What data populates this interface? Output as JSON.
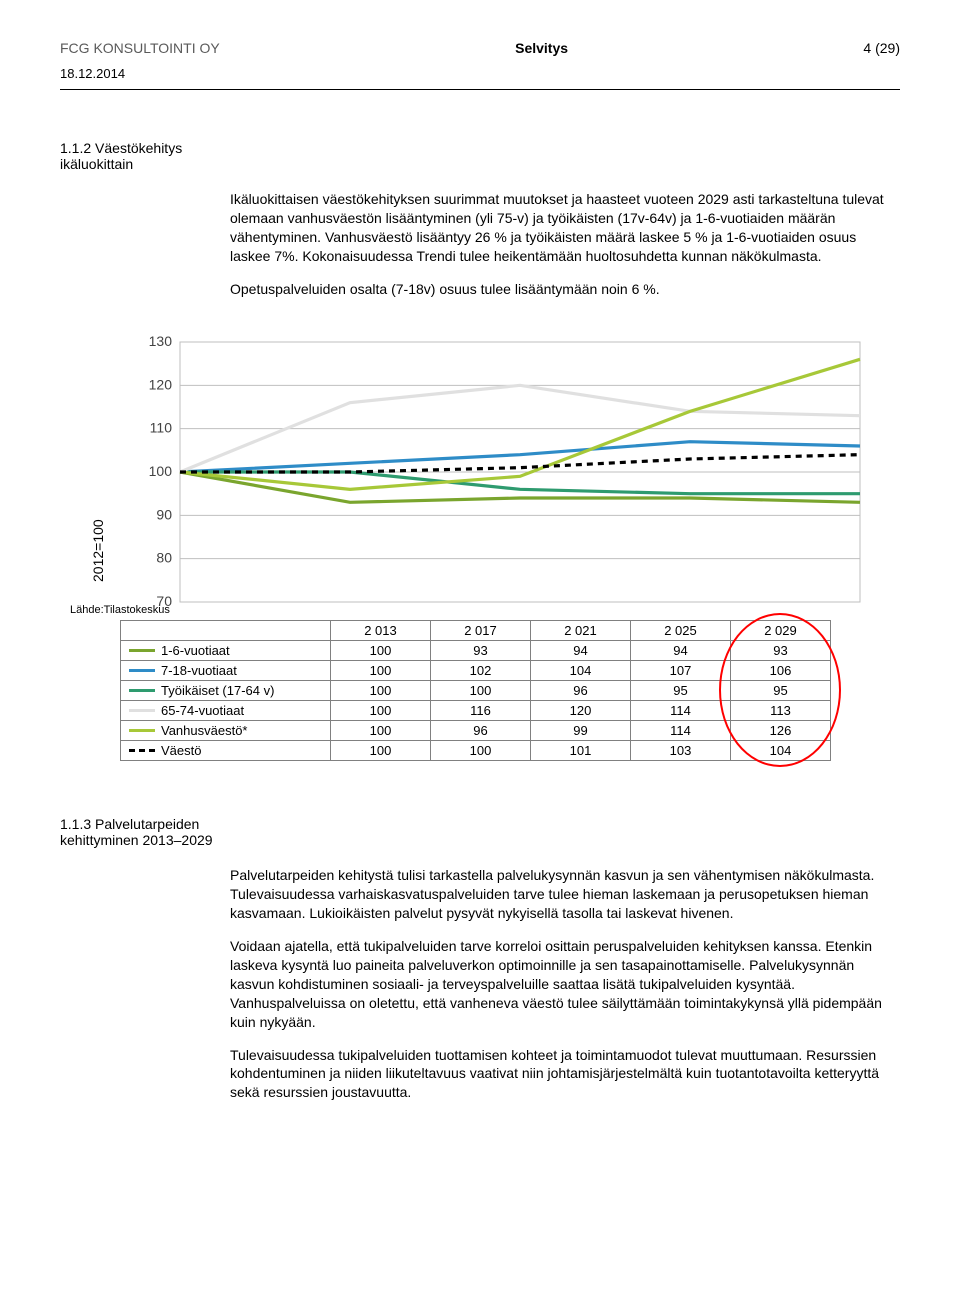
{
  "header": {
    "company": "FCG KONSULTOINTI OY",
    "doc_type": "Selvitys",
    "page_label": "4 (29)",
    "date": "18.12.2014"
  },
  "section_112": {
    "number": "1.1.2",
    "title": "Väestökehitys ikäluokittain",
    "para1": "Ikäluokittaisen väestökehityksen suurimmat muutokset ja haasteet vuoteen 2029 asti tarkasteltuna tulevat olemaan vanhusväestön lisääntyminen (yli 75-v) ja työikäisten (17v-64v) ja 1-6-vuotiaiden määrän vähentyminen. Vanhusväestö lisääntyy 26 % ja työikäisten määrä laskee 5 % ja 1-6-vuotiaiden osuus laskee 7%. Kokonaisuudessa Trendi tulee heikentämään huoltosuhdetta kunnan näkökulmasta.",
    "para2": "Opetuspalveluiden osalta (7-18v) osuus tulee lisääntymään noin 6 %."
  },
  "chart": {
    "y_axis_label": "2012=100",
    "source": "Lähde:Tilastokeskus",
    "y_ticks": [
      70,
      80,
      90,
      100,
      110,
      120,
      130
    ],
    "x_years": [
      "2 013",
      "2 017",
      "2 021",
      "2 025",
      "2 029"
    ],
    "circle_color": "#ff0000",
    "series": [
      {
        "name": "1-6-vuotiaat",
        "color": "#7aa52e",
        "dash": "none",
        "values": [
          100,
          93,
          94,
          94,
          93
        ]
      },
      {
        "name": "7-18-vuotiaat",
        "color": "#2e8cc7",
        "dash": "none",
        "values": [
          100,
          102,
          104,
          107,
          106
        ]
      },
      {
        "name": "Työikäiset (17-64 v)",
        "color": "#2e9b6f",
        "dash": "none",
        "values": [
          100,
          100,
          96,
          95,
          95
        ]
      },
      {
        "name": "65-74-vuotiaat",
        "color": "#e0e0e0",
        "dash": "none",
        "values": [
          100,
          116,
          120,
          114,
          113
        ]
      },
      {
        "name": "Vanhusväestö*",
        "color": "#a7c838",
        "dash": "none",
        "values": [
          100,
          96,
          99,
          114,
          126
        ]
      },
      {
        "name": "Väestö",
        "color": "#000000",
        "dash": "6,5",
        "values": [
          100,
          100,
          101,
          103,
          104
        ]
      }
    ],
    "grid_color": "#bfbfbf",
    "bg_color": "#ffffff"
  },
  "section_113": {
    "number": "1.1.3",
    "title": "Palvelutarpeiden kehittyminen 2013–2029",
    "para1": "Palvelutarpeiden kehitystä tulisi tarkastella palvelukysynnän kasvun ja sen vähentymisen näkökulmasta. Tulevaisuudessa varhaiskasvatuspalveluiden tarve tulee hieman laskemaan ja perusopetuksen hieman kasvamaan. Lukioikäisten palvelut pysyvät nykyisellä tasolla tai laskevat hivenen.",
    "para2": "Voidaan ajatella, että tukipalveluiden tarve korreloi osittain peruspalveluiden kehityksen kanssa. Etenkin laskeva kysyntä luo paineita palveluverkon optimoinnille ja sen tasapainottamiselle. Palvelukysynnän kasvun kohdistuminen sosiaali- ja terveyspalveluille saattaa lisätä tukipalveluiden kysyntää. Vanhuspalveluissa on oletettu, että vanheneva väestö tulee säilyttämään toimintakykynsä yllä pidempään kuin nykyään.",
    "para3": "Tulevaisuudessa tukipalveluiden tuottamisen kohteet ja toimintamuodot tulevat muuttumaan. Resurssien kohdentuminen ja niiden liikuteltavuus vaativat niin johtamisjärjestelmältä kuin tuotantotavoilta ketteryyttä sekä resurssien joustavuutta."
  }
}
